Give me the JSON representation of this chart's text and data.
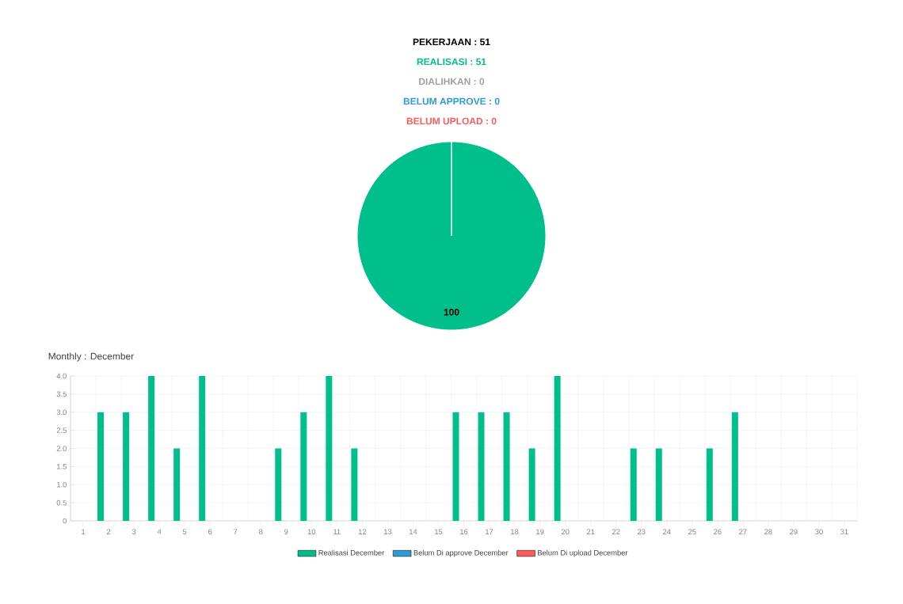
{
  "chart_data": [
    {
      "type": "pie",
      "title": "PEKERJAAN : 51",
      "annotations": [
        "REALISASI : 51",
        "DIALIHKAN : 0",
        "BELUM APPROVE : 0",
        "BELUM UPLOAD : 0"
      ],
      "categories": [
        null
      ],
      "values": [
        100
      ],
      "colors": [
        "#00bf8a"
      ],
      "data_labels": true
    },
    {
      "type": "bar",
      "title": "Monthly : December",
      "categories": [
        "1",
        "2",
        "3",
        "4",
        "5",
        "6",
        "7",
        "8",
        "9",
        "10",
        "11",
        "12",
        "13",
        "14",
        "15",
        "16",
        "17",
        "18",
        "19",
        "20",
        "21",
        "22",
        "23",
        "24",
        "25",
        "26",
        "27",
        "28",
        "29",
        "30",
        "31"
      ],
      "series": [
        {
          "name": "Realisasi December",
          "color": "#00bf8a",
          "values": [
            0,
            3,
            3,
            4,
            2,
            4,
            0,
            0,
            2,
            3,
            4,
            2,
            0,
            0,
            0,
            3,
            3,
            3,
            2,
            4,
            0,
            0,
            2,
            2,
            0,
            2,
            3,
            0,
            0,
            0,
            0
          ]
        },
        {
          "name": "Belum Di approve December",
          "color": "#2e9ad8",
          "values": [
            0,
            0,
            0,
            0,
            0,
            0,
            0,
            0,
            0,
            0,
            0,
            0,
            0,
            0,
            0,
            0,
            0,
            0,
            0,
            0,
            0,
            0,
            0,
            0,
            0,
            0,
            0,
            0,
            0,
            0,
            0
          ]
        },
        {
          "name": "Belum Di upload December",
          "color": "#ff5a5a",
          "values": [
            0,
            0,
            0,
            0,
            0,
            0,
            0,
            0,
            0,
            0,
            0,
            0,
            0,
            0,
            0,
            0,
            0,
            0,
            0,
            0,
            0,
            0,
            0,
            0,
            0,
            0,
            0,
            0,
            0,
            0,
            0
          ]
        }
      ],
      "ylim": [
        0,
        4
      ],
      "yticks": [
        0,
        0.5,
        {
          "value": 1,
          "label": "1.0"
        },
        1.5,
        {
          "value": 2,
          "label": "2.0"
        },
        2.5,
        {
          "value": 3,
          "label": "3.0"
        },
        3.5,
        {
          "value": 4,
          "label": "4.0"
        }
      ],
      "grid": true,
      "legend": "bottom"
    }
  ]
}
